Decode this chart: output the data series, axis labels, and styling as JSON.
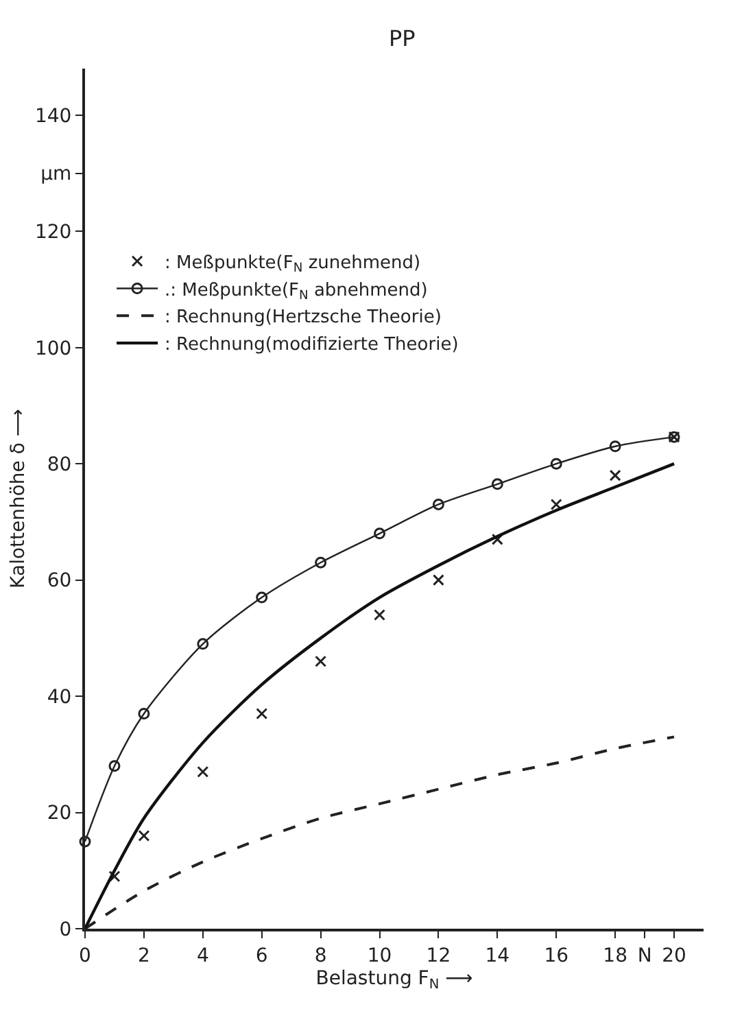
{
  "chart_data": {
    "type": "line",
    "title": "PP",
    "xlabel": "Belastung F$_{N}$ ⟶",
    "ylabel": "Kalottenhöhe δ ⟶",
    "xlim": [
      0,
      21
    ],
    "ylim": [
      0,
      148
    ],
    "xticks": [
      0,
      2,
      4,
      6,
      8,
      10,
      12,
      14,
      16,
      18,
      {
        "value": 19,
        "label": "N"
      },
      20
    ],
    "yticks": [
      0,
      20,
      40,
      60,
      80,
      100,
      120,
      {
        "value": 130,
        "label": "µm"
      },
      140
    ],
    "grid": false,
    "legend": "top left",
    "series": [
      {
        "name": ": Meßpunkte(F$_{N}$ zunehmend)",
        "type": "scatter",
        "marker": "cross",
        "color": "#222222",
        "x": [
          1,
          2,
          4,
          6,
          8,
          10,
          12,
          14,
          16,
          18,
          20
        ],
        "values": [
          9,
          16,
          27,
          37,
          46,
          54,
          60,
          67,
          73,
          78,
          84.6
        ]
      },
      {
        "name": ".: Meßpunkte(F$_{N}$ abnehmend)",
        "marker": "circle",
        "line_style": "solid",
        "color": "#222222",
        "x": [
          0,
          1,
          2,
          4,
          6,
          8,
          10,
          12,
          14,
          16,
          18,
          20
        ],
        "values": [
          15,
          28,
          37,
          49,
          57,
          63,
          68,
          73,
          76.5,
          80,
          83,
          84.6
        ]
      },
      {
        "name": ": Rechnung(Hertzsche Theorie)",
        "marker": "none",
        "line_style": "dashed",
        "color": "#222222",
        "x": [
          0,
          2,
          4,
          6,
          8,
          10,
          12,
          14,
          16,
          18,
          20
        ],
        "values": [
          0,
          6.5,
          11.5,
          15.5,
          19,
          21.5,
          24,
          26.5,
          28.5,
          31,
          33
        ]
      },
      {
        "name": ": Rechnung(modifizierte Theorie)",
        "marker": "none",
        "line_style": "solid",
        "color": "#111111",
        "x": [
          0,
          1,
          2,
          4,
          6,
          8,
          10,
          12,
          14,
          16,
          18,
          20
        ],
        "values": [
          0,
          10,
          19,
          32,
          42,
          50,
          57,
          62.5,
          67.5,
          72,
          76,
          80
        ]
      }
    ]
  }
}
